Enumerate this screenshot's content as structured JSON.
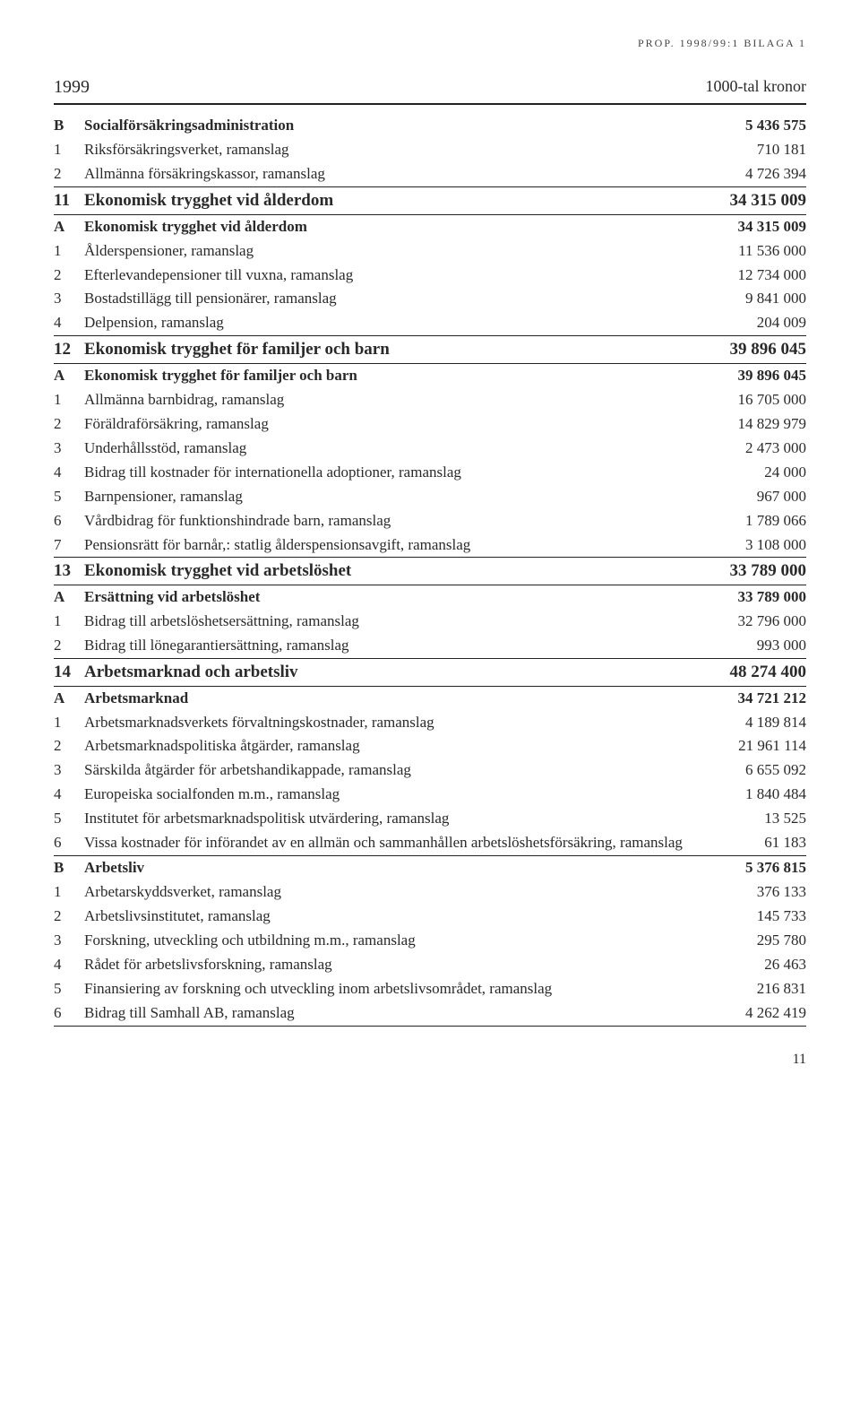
{
  "running_head": "PROP. 1998/99:1 BILAGA 1",
  "year": "1999",
  "unit": "1000-tal kronor",
  "page_number": "11",
  "sections": [
    {
      "subhead": {
        "id": "B",
        "label": "Socialförsäkringsadministration",
        "value": "5 436 575"
      },
      "items": [
        {
          "id": "1",
          "label": "Riksförsäkringsverket, ramanslag",
          "value": "710 181"
        },
        {
          "id": "2",
          "label": "Allmänna försäkringskassor, ramanslag",
          "value": "4 726 394"
        }
      ]
    },
    {
      "head": {
        "id": "11",
        "label": "Ekonomisk trygghet vid ålderdom",
        "value": "34 315 009"
      },
      "subhead": {
        "id": "A",
        "label": "Ekonomisk trygghet vid ålderdom",
        "value": "34 315 009"
      },
      "items": [
        {
          "id": "1",
          "label": "Ålderspensioner, ramanslag",
          "value": "11 536 000"
        },
        {
          "id": "2",
          "label": "Efterlevandepensioner till vuxna, ramanslag",
          "value": "12 734 000"
        },
        {
          "id": "3",
          "label": "Bostadstillägg till pensionärer, ramanslag",
          "value": "9 841 000"
        },
        {
          "id": "4",
          "label": "Delpension, ramanslag",
          "value": "204 009"
        }
      ]
    },
    {
      "head": {
        "id": "12",
        "label": "Ekonomisk trygghet för familjer och barn",
        "value": "39 896 045"
      },
      "subhead": {
        "id": "A",
        "label": "Ekonomisk trygghet för familjer och barn",
        "value": "39 896 045"
      },
      "items": [
        {
          "id": "1",
          "label": "Allmänna barnbidrag, ramanslag",
          "value": "16 705 000"
        },
        {
          "id": "2",
          "label": "Föräldraförsäkring, ramanslag",
          "value": "14 829 979"
        },
        {
          "id": "3",
          "label": "Underhållsstöd, ramanslag",
          "value": "2 473 000"
        },
        {
          "id": "4",
          "label": "Bidrag till kostnader för internationella adoptioner, ramanslag",
          "value": "24 000"
        },
        {
          "id": "5",
          "label": "Barnpensioner, ramanslag",
          "value": "967 000"
        },
        {
          "id": "6",
          "label": "Vårdbidrag för funktionshindrade barn, ramanslag",
          "value": "1 789 066"
        },
        {
          "id": "7",
          "label": "Pensionsrätt för barnår,: statlig ålderspensionsavgift, ramanslag",
          "value": "3 108 000"
        }
      ]
    },
    {
      "head": {
        "id": "13",
        "label": "Ekonomisk trygghet vid arbetslöshet",
        "value": "33 789 000"
      },
      "subhead": {
        "id": "A",
        "label": "Ersättning vid arbetslöshet",
        "value": "33 789 000"
      },
      "items": [
        {
          "id": "1",
          "label": "Bidrag till arbetslöshetsersättning, ramanslag",
          "value": "32 796 000"
        },
        {
          "id": "2",
          "label": "Bidrag till lönegarantiersättning, ramanslag",
          "value": "993 000"
        }
      ]
    },
    {
      "head": {
        "id": "14",
        "label": "Arbetsmarknad och arbetsliv",
        "value": "48 274 400"
      },
      "subhead": {
        "id": "A",
        "label": "Arbetsmarknad",
        "value": "34 721 212"
      },
      "items": [
        {
          "id": "1",
          "label": "Arbetsmarknadsverkets förvaltningskostnader, ramanslag",
          "value": "4 189 814"
        },
        {
          "id": "2",
          "label": "Arbetsmarknadspolitiska åtgärder, ramanslag",
          "value": "21 961 114"
        },
        {
          "id": "3",
          "label": "Särskilda åtgärder för arbetshandikappade, ramanslag",
          "value": "6 655 092"
        },
        {
          "id": "4",
          "label": "Europeiska socialfonden m.m., ramanslag",
          "value": "1 840 484"
        },
        {
          "id": "5",
          "label": "Institutet för arbetsmarknadspolitisk utvärdering, ramanslag",
          "value": "13 525"
        },
        {
          "id": "6",
          "label": "Vissa kostnader för införandet av en allmän och sammanhållen arbetslöshetsförsäkring, ramanslag",
          "value": "61 183"
        }
      ]
    },
    {
      "subhead": {
        "id": "B",
        "label": "Arbetsliv",
        "value": "5 376 815"
      },
      "items": [
        {
          "id": "1",
          "label": "Arbetarskyddsverket, ramanslag",
          "value": "376 133"
        },
        {
          "id": "2",
          "label": "Arbetslivsinstitutet, ramanslag",
          "value": "145 733"
        },
        {
          "id": "3",
          "label": "Forskning, utveckling och utbildning m.m., ramanslag",
          "value": "295 780"
        },
        {
          "id": "4",
          "label": "Rådet för arbetslivsforskning, ramanslag",
          "value": "26 463"
        },
        {
          "id": "5",
          "label": "Finansiering av forskning och utveckling inom arbetslivsområdet, ramanslag",
          "value": "216 831"
        },
        {
          "id": "6",
          "label": "Bidrag till Samhall AB, ramanslag",
          "value": "4 262 419"
        }
      ]
    }
  ]
}
